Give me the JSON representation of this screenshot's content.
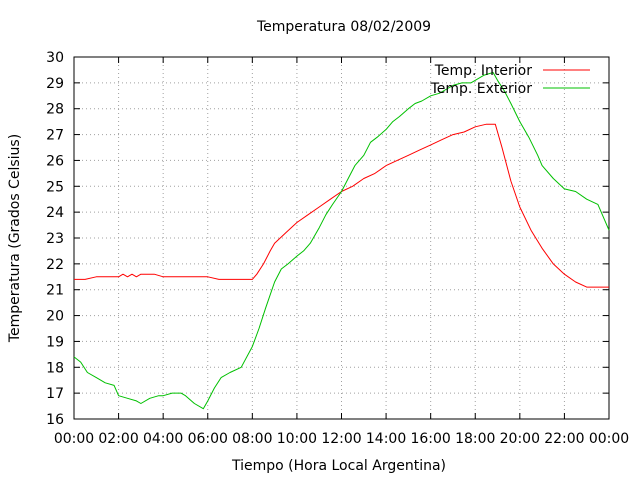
{
  "chart_data": {
    "type": "line",
    "title": "Temperatura 08/02/2009",
    "xlabel": "Tiempo (Hora Local Argentina)",
    "ylabel": "Temperatura (Grados Celsius)",
    "xlim": [
      0,
      24
    ],
    "ylim": [
      16,
      30
    ],
    "grid": true,
    "legend_position": "top-right",
    "x_ticks": [
      "00:00",
      "02:00",
      "04:00",
      "06:00",
      "08:00",
      "10:00",
      "12:00",
      "14:00",
      "16:00",
      "18:00",
      "20:00",
      "22:00",
      "00:00"
    ],
    "y_ticks": [
      "16",
      "17",
      "18",
      "19",
      "20",
      "21",
      "22",
      "23",
      "24",
      "25",
      "26",
      "27",
      "28",
      "29",
      "30"
    ],
    "series": [
      {
        "name": "Temp. Interior",
        "color": "#ff0000",
        "x": [
          0,
          0.5,
          1,
          1.5,
          2,
          2.2,
          2.4,
          2.6,
          2.8,
          3,
          3.3,
          3.6,
          4,
          4.2,
          5,
          6,
          6.5,
          7,
          7.5,
          8,
          8.2,
          8.5,
          8.8,
          9,
          9.5,
          10,
          10.5,
          11,
          11.5,
          12,
          12.5,
          13,
          13.5,
          14,
          14.5,
          15,
          15.5,
          16,
          16.5,
          17,
          17.5,
          18,
          18.5,
          18.9,
          19.2,
          19.6,
          20,
          20.5,
          21,
          21.5,
          22,
          22.5,
          23,
          23.5,
          24
        ],
        "values": [
          21.4,
          21.4,
          21.5,
          21.5,
          21.5,
          21.6,
          21.5,
          21.6,
          21.5,
          21.6,
          21.6,
          21.6,
          21.5,
          21.5,
          21.5,
          21.5,
          21.4,
          21.4,
          21.4,
          21.4,
          21.6,
          22.0,
          22.5,
          22.8,
          23.2,
          23.6,
          23.9,
          24.2,
          24.5,
          24.8,
          25.0,
          25.3,
          25.5,
          25.8,
          26.0,
          26.2,
          26.4,
          26.6,
          26.8,
          27.0,
          27.1,
          27.3,
          27.4,
          27.4,
          26.5,
          25.2,
          24.2,
          23.3,
          22.6,
          22.0,
          21.6,
          21.3,
          21.1,
          21.1,
          21.1
        ]
      },
      {
        "name": "Temp. Exterior",
        "color": "#00c000",
        "x": [
          0,
          0.3,
          0.6,
          1,
          1.4,
          1.8,
          2,
          2.4,
          2.8,
          3,
          3.4,
          3.8,
          4,
          4.4,
          4.8,
          5,
          5.4,
          5.8,
          6,
          6.3,
          6.6,
          7,
          7.5,
          8,
          8.3,
          8.6,
          9,
          9.3,
          9.6,
          10,
          10.3,
          10.6,
          11,
          11.3,
          11.6,
          12,
          12.3,
          12.6,
          13,
          13.3,
          13.6,
          14,
          14.3,
          14.6,
          15,
          15.3,
          15.6,
          16,
          16.4,
          16.8,
          17,
          17.4,
          17.8,
          18,
          18.4,
          18.8,
          19,
          19.3,
          19.6,
          20,
          20.4,
          20.8,
          21,
          21.5,
          22,
          22.5,
          23,
          23.5,
          24
        ],
        "values": [
          18.4,
          18.2,
          17.8,
          17.6,
          17.4,
          17.3,
          16.9,
          16.8,
          16.7,
          16.6,
          16.8,
          16.9,
          16.9,
          17.0,
          17.0,
          16.9,
          16.6,
          16.4,
          16.7,
          17.2,
          17.6,
          17.8,
          18.0,
          18.8,
          19.5,
          20.3,
          21.3,
          21.8,
          22.0,
          22.3,
          22.5,
          22.8,
          23.4,
          23.9,
          24.3,
          24.8,
          25.3,
          25.8,
          26.2,
          26.7,
          26.9,
          27.2,
          27.5,
          27.7,
          28.0,
          28.2,
          28.3,
          28.5,
          28.6,
          28.8,
          28.9,
          29.0,
          29.0,
          29.1,
          29.3,
          29.4,
          29.1,
          28.7,
          28.2,
          27.5,
          26.9,
          26.2,
          25.8,
          25.3,
          24.9,
          24.8,
          24.5,
          24.3,
          23.3
        ]
      }
    ]
  }
}
